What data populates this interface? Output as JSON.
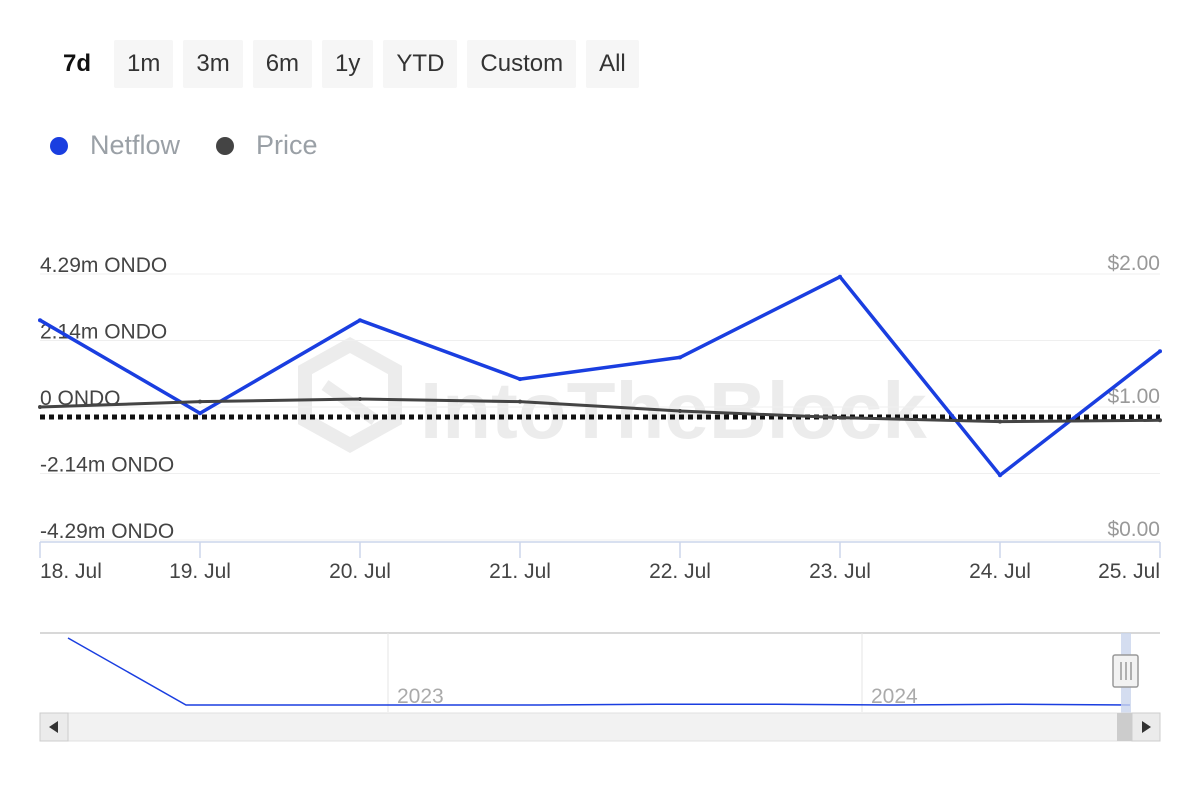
{
  "range_selector": {
    "buttons": [
      "7d",
      "1m",
      "3m",
      "6m",
      "1y",
      "YTD",
      "Custom",
      "All"
    ],
    "active": "7d"
  },
  "legend": {
    "netflow": {
      "label": "Netflow",
      "color": "#1a3ee0"
    },
    "price": {
      "label": "Price",
      "color": "#444444"
    }
  },
  "watermark": "IntoTheBlock",
  "chart_data": {
    "type": "line",
    "x": [
      "18. Jul",
      "19. Jul",
      "20. Jul",
      "21. Jul",
      "22. Jul",
      "23. Jul",
      "24. Jul",
      "25. Jul"
    ],
    "y_left_ticks": [
      "4.29m ONDO",
      "2.14m ONDO",
      "0 ONDO",
      "-2.14m ONDO",
      "-4.29m ONDO"
    ],
    "y_left_range": [
      -4.29,
      4.29
    ],
    "y_right_ticks": [
      "$2.00",
      "$1.00",
      "$0.00"
    ],
    "y_right_range": [
      0,
      2
    ],
    "series": [
      {
        "name": "Netflow",
        "axis": "left",
        "color": "#1a3ee0",
        "values": [
          2.8,
          -0.2,
          2.8,
          0.9,
          1.6,
          4.2,
          -2.2,
          1.8
        ]
      },
      {
        "name": "Price",
        "axis": "right",
        "color": "#444444",
        "values": [
          1.0,
          1.04,
          1.06,
          1.04,
          0.97,
          0.92,
          0.89,
          0.9
        ]
      }
    ],
    "zero_line": "dotted",
    "grid": true
  },
  "navigator": {
    "labels": [
      "2023",
      "2024"
    ],
    "series": [
      4.2,
      0,
      0,
      0,
      0,
      0.05,
      0.05,
      0,
      0.05,
      0
    ]
  },
  "scrollbar": {
    "left_arrow": "◀",
    "right_arrow": "▶"
  }
}
